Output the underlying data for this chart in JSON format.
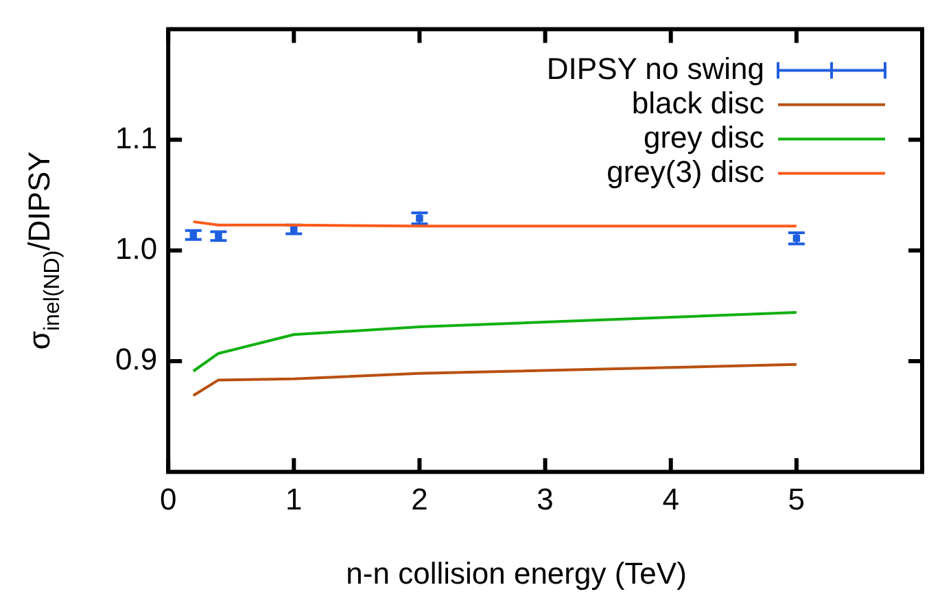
{
  "chart_data": {
    "type": "line",
    "xlabel": "n-n collision energy (TeV)",
    "ylabel": "σ$_{inel(ND)}$/DIPSY",
    "x": [
      0.2,
      0.4,
      1,
      2,
      5
    ],
    "series": [
      {
        "name": "DIPSY no swing",
        "type": "scatter",
        "color": "#1f5fe0",
        "values": [
          1.014,
          1.013,
          1.019,
          1.029,
          1.011
        ],
        "errors": [
          0.004,
          0.004,
          0.004,
          0.005,
          0.005
        ]
      },
      {
        "name": "black disc",
        "color": "#b8500f",
        "values": [
          0.869,
          0.883,
          0.884,
          0.889,
          0.897
        ]
      },
      {
        "name": "grey disc",
        "color": "#10b010",
        "values": [
          0.891,
          0.907,
          0.924,
          0.931,
          0.944
        ]
      },
      {
        "name": "grey(3) disc",
        "color": "#ff5a1a",
        "values": [
          1.026,
          1.023,
          1.023,
          1.022,
          1.022
        ]
      }
    ],
    "xlim": [
      0,
      6
    ],
    "xticks": [
      0,
      1,
      2,
      3,
      4,
      5
    ],
    "ylim": [
      0.8,
      1.2
    ],
    "yticks": [
      0.9,
      {
        "value": 1.0,
        "label": "1.0"
      },
      1.1
    ],
    "grid": false,
    "legend": "top right"
  }
}
